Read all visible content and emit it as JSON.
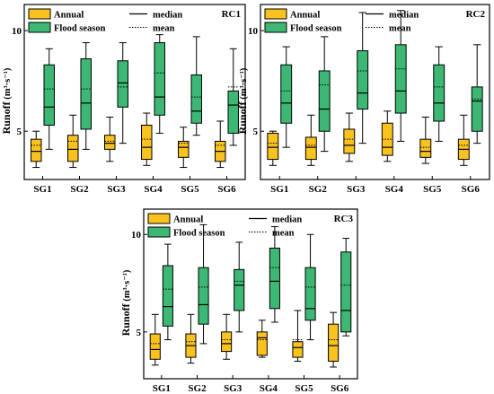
{
  "chart_data": [
    {
      "type": "box",
      "tag": "RC1",
      "ylabel": "Runoff",
      "ylabel_unit": "(m³·s⁻¹)",
      "ylim": [
        2.6,
        11.3
      ],
      "yticks": [
        5,
        10
      ],
      "categories": [
        "SG1",
        "SG2",
        "SG3",
        "SG4",
        "SG5",
        "SG6"
      ],
      "legend": {
        "annual": "Annual",
        "flood": "Flood season",
        "median": "median",
        "mean": "mean"
      },
      "series": [
        {
          "name": "Annual",
          "color": "#F9C21E",
          "boxes": [
            {
              "whisker_low": 3.2,
              "q1": 3.5,
              "median": 4.0,
              "q3": 4.6,
              "whisker_high": 5.0,
              "mean": 4.3
            },
            {
              "whisker_low": 3.2,
              "q1": 3.5,
              "median": 4.1,
              "q3": 4.8,
              "whisker_high": 5.8,
              "mean": 4.5
            },
            {
              "whisker_low": 3.5,
              "q1": 4.1,
              "median": 4.4,
              "q3": 4.8,
              "whisker_high": 5.7,
              "mean": 4.5
            },
            {
              "whisker_low": 3.3,
              "q1": 3.6,
              "median": 4.2,
              "q3": 5.3,
              "whisker_high": 5.9,
              "mean": 4.6
            },
            {
              "whisker_low": 3.2,
              "q1": 3.7,
              "median": 4.2,
              "q3": 4.5,
              "whisker_high": 5.2,
              "mean": 4.4
            },
            {
              "whisker_low": 3.2,
              "q1": 3.5,
              "median": 4.0,
              "q3": 4.5,
              "whisker_high": 5.5,
              "mean": 4.3
            }
          ]
        },
        {
          "name": "Flood season",
          "color": "#3CB874",
          "boxes": [
            {
              "whisker_low": 4.1,
              "q1": 5.3,
              "median": 6.2,
              "q3": 8.3,
              "whisker_high": 9.1,
              "mean": 7.1
            },
            {
              "whisker_low": 4.1,
              "q1": 5.1,
              "median": 6.4,
              "q3": 8.6,
              "whisker_high": 9.4,
              "mean": 7.1
            },
            {
              "whisker_low": 4.4,
              "q1": 6.2,
              "median": 7.4,
              "q3": 8.5,
              "whisker_high": 9.4,
              "mean": 7.2
            },
            {
              "whisker_low": 4.9,
              "q1": 5.8,
              "median": 6.7,
              "q3": 9.4,
              "whisker_high": 9.8,
              "mean": 7.9
            },
            {
              "whisker_low": 4.8,
              "q1": 5.4,
              "median": 6.0,
              "q3": 7.8,
              "whisker_high": 9.7,
              "mean": 6.7
            },
            {
              "whisker_low": 4.3,
              "q1": 4.9,
              "median": 6.3,
              "q3": 7.0,
              "whisker_high": 9.1,
              "mean": 7.2
            }
          ]
        }
      ]
    },
    {
      "type": "box",
      "tag": "RC2",
      "ylabel": "Runoff",
      "ylabel_unit": "(m³·s⁻¹)",
      "ylim": [
        2.6,
        11.3
      ],
      "yticks": [
        5,
        10
      ],
      "categories": [
        "SG1",
        "SG2",
        "SG3",
        "SG4",
        "SG5",
        "SG6"
      ],
      "legend": {
        "annual": "Annual",
        "flood": "Flood season",
        "median": "median",
        "mean": "mean"
      },
      "series": [
        {
          "name": "Annual",
          "color": "#F9C21E",
          "boxes": [
            {
              "whisker_low": 3.3,
              "q1": 3.6,
              "median": 4.2,
              "q3": 4.9,
              "whisker_high": 5.0,
              "mean": 4.4
            },
            {
              "whisker_low": 3.3,
              "q1": 3.6,
              "median": 4.2,
              "q3": 4.7,
              "whisker_high": 5.8,
              "mean": 4.3
            },
            {
              "whisker_low": 3.5,
              "q1": 3.9,
              "median": 4.3,
              "q3": 5.1,
              "whisker_high": 5.9,
              "mean": 4.6
            },
            {
              "whisker_low": 3.5,
              "q1": 3.8,
              "median": 4.2,
              "q3": 5.4,
              "whisker_high": 6.0,
              "mean": 4.6
            },
            {
              "whisker_low": 3.4,
              "q1": 3.7,
              "median": 4.0,
              "q3": 4.6,
              "whisker_high": 5.7,
              "mean": 4.2
            },
            {
              "whisker_low": 3.3,
              "q1": 3.6,
              "median": 4.1,
              "q3": 4.6,
              "whisker_high": 5.8,
              "mean": 4.3
            }
          ]
        },
        {
          "name": "Flood season",
          "color": "#3CB874",
          "boxes": [
            {
              "whisker_low": 4.2,
              "q1": 5.4,
              "median": 6.4,
              "q3": 8.3,
              "whisker_high": 9.2,
              "mean": 7.0
            },
            {
              "whisker_low": 4.0,
              "q1": 5.0,
              "median": 6.1,
              "q3": 8.0,
              "whisker_high": 9.7,
              "mean": 7.3
            },
            {
              "whisker_low": 4.4,
              "q1": 6.1,
              "median": 6.9,
              "q3": 9.0,
              "whisker_high": 10.9,
              "mean": 8.0
            },
            {
              "whisker_low": 4.5,
              "q1": 5.9,
              "median": 7.0,
              "q3": 9.3,
              "whisker_high": 11.0,
              "mean": 8.1
            },
            {
              "whisker_low": 4.5,
              "q1": 5.5,
              "median": 6.4,
              "q3": 8.3,
              "whisker_high": 9.2,
              "mean": 7.2
            },
            {
              "whisker_low": 4.4,
              "q1": 5.0,
              "median": 6.5,
              "q3": 7.2,
              "whisker_high": 9.3,
              "mean": 6.6
            }
          ]
        }
      ]
    },
    {
      "type": "box",
      "tag": "RC3",
      "ylabel": "Runoff",
      "ylabel_unit": "(m³·s⁻¹)",
      "ylim": [
        2.6,
        11.3
      ],
      "yticks": [
        5,
        10
      ],
      "categories": [
        "SG1",
        "SG2",
        "SG3",
        "SG4",
        "SG5",
        "SG6"
      ],
      "legend": {
        "annual": "Annual",
        "flood": "Flood season",
        "median": "median",
        "mean": "mean"
      },
      "series": [
        {
          "name": "Annual",
          "color": "#F9C21E",
          "boxes": [
            {
              "whisker_low": 3.3,
              "q1": 3.6,
              "median": 4.1,
              "q3": 4.9,
              "whisker_high": 5.9,
              "mean": 4.4
            },
            {
              "whisker_low": 3.4,
              "q1": 3.7,
              "median": 4.3,
              "q3": 4.9,
              "whisker_high": 5.9,
              "mean": 4.5
            },
            {
              "whisker_low": 3.6,
              "q1": 4.0,
              "median": 4.4,
              "q3": 5.0,
              "whisker_high": 5.9,
              "mean": 4.6
            },
            {
              "whisker_low": 3.7,
              "q1": 3.8,
              "median": 4.7,
              "q3": 5.0,
              "whisker_high": 5.6,
              "mean": 4.6
            },
            {
              "whisker_low": 3.5,
              "q1": 3.7,
              "median": 4.2,
              "q3": 4.5,
              "whisker_high": 6.1,
              "mean": 4.6
            },
            {
              "whisker_low": 3.2,
              "q1": 3.5,
              "median": 4.3,
              "q3": 5.4,
              "whisker_high": 6.0,
              "mean": 4.6
            }
          ]
        },
        {
          "name": "Flood season",
          "color": "#3CB874",
          "boxes": [
            {
              "whisker_low": 4.6,
              "q1": 5.3,
              "median": 6.3,
              "q3": 8.4,
              "whisker_high": 9.5,
              "mean": 7.2
            },
            {
              "whisker_low": 4.4,
              "q1": 5.4,
              "median": 6.4,
              "q3": 8.3,
              "whisker_high": 10.5,
              "mean": 7.3
            },
            {
              "whisker_low": 5.0,
              "q1": 6.1,
              "median": 7.4,
              "q3": 8.2,
              "whisker_high": 9.6,
              "mean": 7.6
            },
            {
              "whisker_low": 5.5,
              "q1": 6.2,
              "median": 7.6,
              "q3": 9.3,
              "whisker_high": 10.4,
              "mean": 8.3
            },
            {
              "whisker_low": 4.6,
              "q1": 5.6,
              "median": 6.2,
              "q3": 8.3,
              "whisker_high": 10.0,
              "mean": 7.3
            },
            {
              "whisker_low": 4.8,
              "q1": 5.0,
              "median": 6.1,
              "q3": 9.1,
              "whisker_high": 9.8,
              "mean": 7.4
            }
          ]
        }
      ]
    }
  ]
}
